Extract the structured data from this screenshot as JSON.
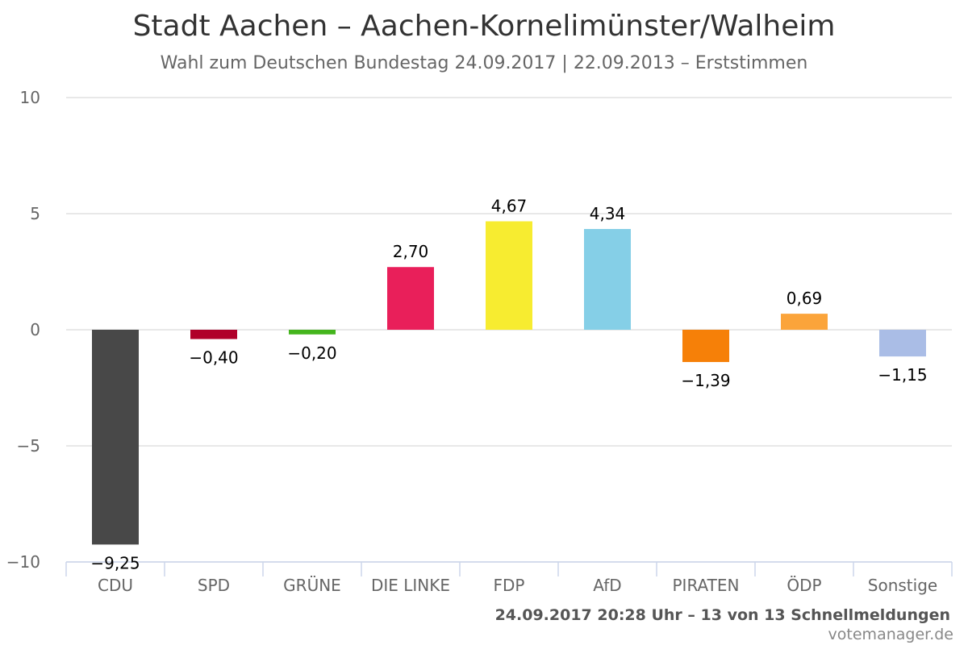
{
  "chart_data": {
    "type": "bar",
    "title": "Stadt Aachen – Aachen-Kornelimünster/Walheim",
    "subtitle": "Wahl zum Deutschen Bundestag 24.09.2017 | 22.09.2013 – Erststimmen",
    "categories": [
      "CDU",
      "SPD",
      "GRÜNE",
      "DIE LINKE",
      "FDP",
      "AfD",
      "PIRATEN",
      "ÖDP",
      "Sonstige"
    ],
    "values": [
      -9.25,
      -0.4,
      -0.2,
      2.7,
      4.67,
      4.34,
      -1.39,
      0.69,
      -1.15
    ],
    "value_labels": [
      "−9,25",
      "−0,40",
      "−0,20",
      "2,70",
      "4,67",
      "4,34",
      "−1,39",
      "0,69",
      "−1,15"
    ],
    "colors": [
      "#484848",
      "#b0002a",
      "#44b51d",
      "#e91f5a",
      "#f7ec30",
      "#85cfe7",
      "#f68008",
      "#fba43a",
      "#aabde6"
    ],
    "ylim": [
      -10,
      10
    ],
    "yticks": [
      10,
      5,
      0,
      -5,
      -10
    ],
    "ytick_labels": [
      "10",
      "5",
      "0",
      "−5",
      "−10"
    ],
    "grid": true,
    "legend": "none",
    "xlabel": "",
    "ylabel": ""
  },
  "footer": {
    "status": "24.09.2017 20:28 Uhr – 13 von 13 Schnellmeldungen",
    "credit": "votemanager.de"
  }
}
